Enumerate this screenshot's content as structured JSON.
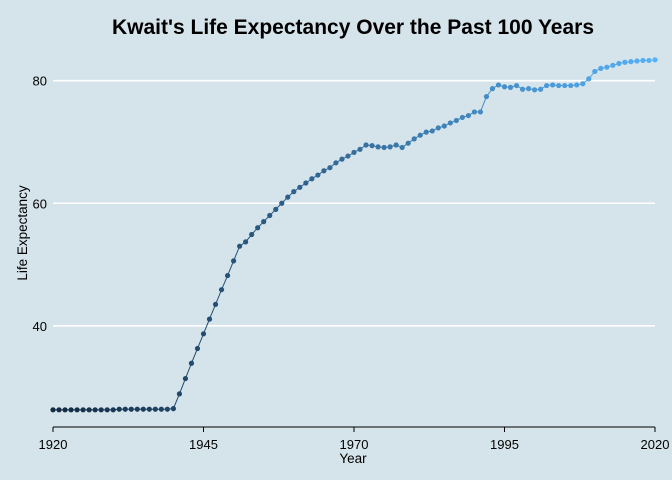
{
  "chart_data": {
    "type": "line",
    "title": "Kwait's Life Expectancy Over the Past 100 Years",
    "xlabel": "Year",
    "ylabel": "Life Expectancy",
    "xlim": [
      1920,
      2020
    ],
    "ylim": [
      23.5,
      85
    ],
    "x_ticks": [
      1920,
      1945,
      1970,
      1995,
      2020
    ],
    "y_ticks": [
      40,
      60,
      80
    ],
    "grid": "horizontal major",
    "legend": "none",
    "colors": {
      "start": "#132b43",
      "end": "#56b1f7",
      "background": "#d5e4eb",
      "grid": "#ffffff"
    },
    "x": [
      1920,
      1921,
      1922,
      1923,
      1924,
      1925,
      1926,
      1927,
      1928,
      1929,
      1930,
      1931,
      1932,
      1933,
      1934,
      1935,
      1936,
      1937,
      1938,
      1939,
      1940,
      1941,
      1942,
      1943,
      1944,
      1945,
      1946,
      1947,
      1948,
      1949,
      1950,
      1951,
      1952,
      1953,
      1954,
      1955,
      1956,
      1957,
      1958,
      1959,
      1960,
      1961,
      1962,
      1963,
      1964,
      1965,
      1966,
      1967,
      1968,
      1969,
      1970,
      1971,
      1972,
      1973,
      1974,
      1975,
      1976,
      1977,
      1978,
      1979,
      1980,
      1981,
      1982,
      1983,
      1984,
      1985,
      1986,
      1987,
      1988,
      1989,
      1990,
      1991,
      1992,
      1993,
      1994,
      1995,
      1996,
      1997,
      1998,
      1999,
      2000,
      2001,
      2002,
      2003,
      2004,
      2005,
      2006,
      2007,
      2008,
      2009,
      2010,
      2011,
      2012,
      2013,
      2014,
      2015,
      2016,
      2017,
      2018,
      2019,
      2020
    ],
    "values": [
      26.3,
      26.3,
      26.3,
      26.3,
      26.3,
      26.3,
      26.3,
      26.3,
      26.3,
      26.3,
      26.3,
      26.4,
      26.4,
      26.4,
      26.4,
      26.4,
      26.4,
      26.4,
      26.4,
      26.4,
      26.5,
      28.9,
      31.4,
      33.9,
      36.3,
      38.7,
      41.1,
      43.5,
      45.9,
      48.2,
      50.6,
      53.0,
      53.7,
      54.9,
      56.0,
      57.0,
      58.0,
      59.0,
      60.0,
      61.0,
      61.9,
      62.6,
      63.3,
      64.0,
      64.6,
      65.3,
      65.8,
      66.6,
      67.2,
      67.7,
      68.3,
      68.8,
      69.5,
      69.4,
      69.2,
      69.1,
      69.2,
      69.5,
      69.1,
      69.8,
      70.5,
      71.1,
      71.6,
      71.8,
      72.3,
      72.6,
      73.1,
      73.5,
      74.0,
      74.3,
      74.9,
      74.9,
      77.4,
      78.7,
      79.3,
      79.0,
      78.9,
      79.2,
      78.6,
      78.7,
      78.5,
      78.6,
      79.2,
      79.3,
      79.2,
      79.2,
      79.2,
      79.3,
      79.5,
      80.3,
      81.5,
      82.0,
      82.2,
      82.5,
      82.8,
      83.0,
      83.1,
      83.2,
      83.3,
      83.3,
      83.4
    ]
  }
}
